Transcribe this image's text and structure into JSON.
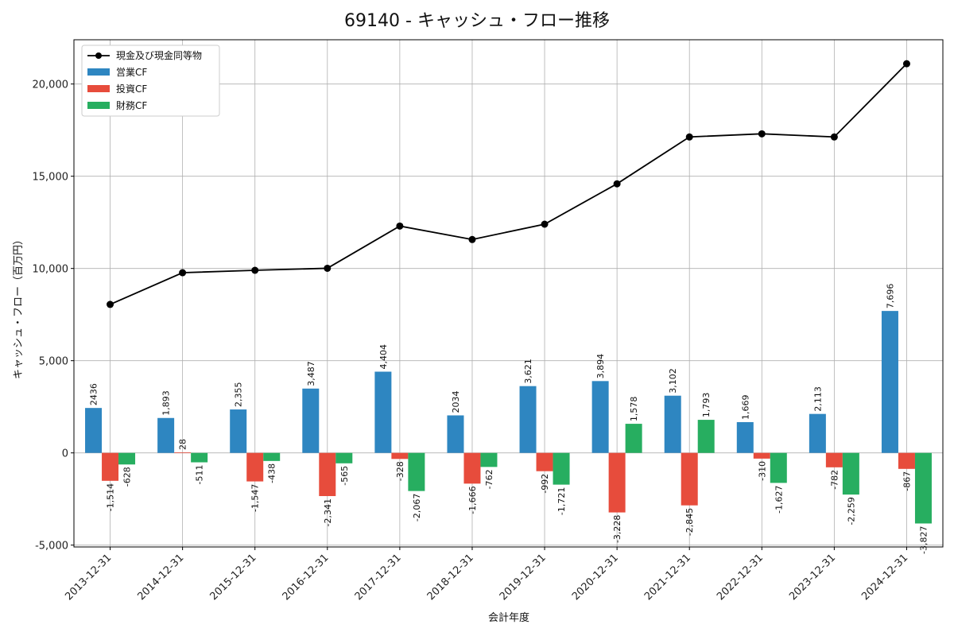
{
  "chart_data": {
    "type": "bar",
    "title": "69140 - キャッシュ・フロー推移",
    "xlabel": "会計年度",
    "ylabel": "キャッシュ・フロー（百万円）",
    "ylim": [
      -5100,
      22400
    ],
    "yticks": [
      -5000,
      0,
      5000,
      10000,
      15000,
      20000
    ],
    "ytick_labels": [
      "-5,000",
      "0",
      "5,000",
      "10,000",
      "15,000",
      "20,000"
    ],
    "grid": true,
    "legend_position": "top-left",
    "categories": [
      "2013-12-31",
      "2014-12-31",
      "2015-12-31",
      "2016-12-31",
      "2017-12-31",
      "2018-12-31",
      "2019-12-31",
      "2020-12-31",
      "2021-12-31",
      "2022-12-31",
      "2023-12-31",
      "2024-12-31"
    ],
    "line_series": {
      "name": "現金及び現金同等物",
      "color": "#000000",
      "values": [
        8050,
        9770,
        9900,
        10010,
        12300,
        11570,
        12400,
        14590,
        17130,
        17300,
        17130,
        21100
      ]
    },
    "series": [
      {
        "name": "営業CF",
        "color": "#2e86c1",
        "values": [
          2436,
          1893,
          2355,
          3487,
          4404,
          2034,
          3621,
          3894,
          3102,
          1669,
          2113,
          7696
        ],
        "labels": [
          "2436",
          "1,893",
          "2,355",
          "3,487",
          "4,404",
          "2034",
          "3,621",
          "3,894",
          "3,102",
          "1,669",
          "2,113",
          "7,696"
        ]
      },
      {
        "name": "投資CF",
        "color": "#e74c3c",
        "values": [
          -1514,
          28,
          -1547,
          -2341,
          -328,
          -1666,
          -992,
          -3228,
          -2845,
          -310,
          -782,
          -867
        ],
        "labels": [
          "-1,514",
          "28",
          "-1,547",
          "-2,341",
          "-328",
          "-1,666",
          "-992",
          "-3,228",
          "-2,845",
          "-310",
          "-782",
          "-867"
        ]
      },
      {
        "name": "財務CF",
        "color": "#27ae60",
        "values": [
          -628,
          -511,
          -438,
          -565,
          -2067,
          -762,
          -1721,
          1578,
          1793,
          -1627,
          -2259,
          -3827
        ],
        "labels": [
          "-628",
          "-511",
          "-438",
          "-565",
          "-2,067",
          "-762",
          "-1,721",
          "1,578",
          "1,793",
          "-1,627",
          "-2,259",
          "-3,827"
        ]
      }
    ]
  }
}
